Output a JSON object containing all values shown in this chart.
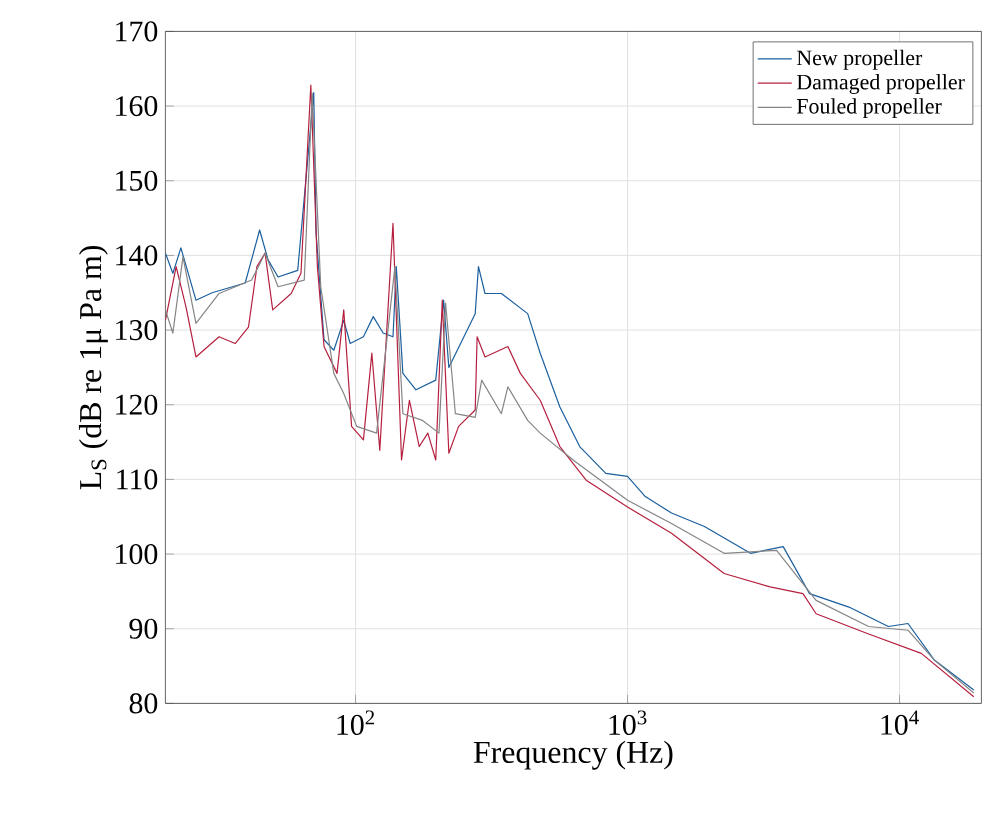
{
  "chart_data": {
    "type": "line",
    "xlabel": "Frequency (Hz)",
    "ylabel": "L$_{S}$ (dB re 1μ Pa m)",
    "log": "x",
    "grid": true,
    "legend": "top right",
    "line_style": "solid",
    "marker": "none",
    "xlim": [
      20,
      20000
    ],
    "ylim": [
      80,
      170
    ],
    "xticks": [
      {
        "value": 100,
        "label": "10$^{2}$"
      },
      {
        "value": 1000,
        "label": "10$^{3}$"
      },
      {
        "value": 10000,
        "label": "10$^{4}$"
      }
    ],
    "yticks": [
      80,
      90,
      100,
      110,
      120,
      130,
      140,
      150,
      160,
      170
    ],
    "series": [
      {
        "name": "New propeller",
        "color": "#1a5f9e",
        "x": [
          20,
          21.3,
          22.8,
          25.9,
          29.7,
          39.3,
          44.4,
          47.7,
          51.9,
          61.3,
          70.2,
          71.6,
          76.6,
          83.2,
          90.5,
          95.6,
          106.9,
          116.2,
          126.3,
          137.3,
          141.2,
          149.3,
          166.7,
          197.2,
          210.8,
          220.3,
          275.4,
          283.1,
          299.2,
          343.6,
          429.4,
          477.5,
          564,
          667,
          832,
          1000,
          1162,
          1451,
          1918,
          2831,
          3735,
          4668,
          6516,
          9097,
          10744,
          13427,
          18750
        ],
        "values": [
          140.3,
          137.6,
          141,
          134,
          135,
          136.3,
          143.4,
          139.4,
          137.1,
          138,
          161.8,
          143,
          128.7,
          127.3,
          131.3,
          128.2,
          129.1,
          131.8,
          129.6,
          129.1,
          138.5,
          124.2,
          122,
          123.3,
          134,
          125,
          132.2,
          138.5,
          134.9,
          134.9,
          132.2,
          126.9,
          119.7,
          114.4,
          110.8,
          110.4,
          107.7,
          105.5,
          103.7,
          100.1,
          101,
          94.7,
          92.9,
          90.3,
          90.7,
          85.8,
          81.8
        ]
      },
      {
        "name": "Damaged propeller",
        "color": "#b51f3e",
        "x": [
          20,
          21.9,
          23.8,
          25.9,
          31.5,
          36.1,
          40.4,
          43.4,
          46.5,
          49.6,
          58,
          63,
          68.5,
          72.4,
          76.6,
          85.5,
          90.5,
          96.7,
          106.9,
          114.8,
          122.8,
          137.3,
          147.6,
          157.8,
          171.5,
          184.4,
          197.2,
          208.4,
          220.3,
          239.3,
          275.4,
          279.9,
          299.2,
          363.1,
          403.6,
          477.5,
          564,
          704.6,
          1000,
          1451,
          2265,
          3342,
          4415,
          4935,
          7697,
          12021,
          18750
        ],
        "values": [
          131.3,
          138.5,
          133.1,
          126.4,
          129.1,
          128.2,
          130.4,
          138.5,
          140.3,
          132.7,
          134.9,
          137.6,
          162.8,
          138.5,
          127.8,
          124.2,
          132.7,
          117.1,
          115.3,
          126.9,
          113.9,
          144.3,
          112.6,
          120.6,
          114.4,
          116.2,
          112.6,
          134,
          113.5,
          117.1,
          119.3,
          129.1,
          126.4,
          127.8,
          124.2,
          120.6,
          114.4,
          109.9,
          106.3,
          102.8,
          97.4,
          95.6,
          94.7,
          92,
          89.3,
          86.7,
          80.9
        ]
      },
      {
        "name": "Fouled propeller",
        "color": "#858585",
        "x": [
          20,
          21.3,
          23.2,
          25.9,
          31.5,
          41.5,
          46.5,
          51.9,
          64.8,
          69.3,
          74.5,
          83.2,
          90.5,
          101,
          119.5,
          139.6,
          149.3,
          176.3,
          202.7,
          214.3,
          232.8,
          275.4,
          290.9,
          343.6,
          363.1,
          429.4,
          477.5,
          630.6,
          1000,
          1451,
          2265,
          3532,
          4935,
          7697,
          10744,
          13427,
          18750
        ],
        "values": [
          132.7,
          129.6,
          139.8,
          130.9,
          134.9,
          136.7,
          140.3,
          135.8,
          136.7,
          161.7,
          135.8,
          124.2,
          121.5,
          117.1,
          116.2,
          138.5,
          118.8,
          117.9,
          116.2,
          133.6,
          118.8,
          118.3,
          123.3,
          118.8,
          122.4,
          117.9,
          116.2,
          112.6,
          107.2,
          104.1,
          100.1,
          100.5,
          93.8,
          90.3,
          89.8,
          85.8,
          81.4
        ]
      }
    ]
  }
}
